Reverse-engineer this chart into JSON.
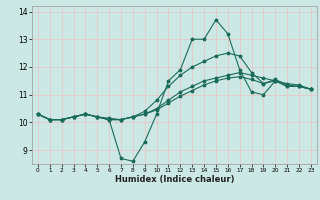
{
  "title": "",
  "xlabel": "Humidex (Indice chaleur)",
  "bg_color": "#cce8e4",
  "grid_color": "#e8c8c8",
  "line_color": "#1a6b5a",
  "series": [
    [
      10.3,
      10.1,
      10.1,
      10.2,
      10.3,
      10.2,
      10.1,
      8.7,
      8.6,
      9.3,
      10.3,
      11.5,
      11.9,
      13.0,
      13.0,
      13.7,
      13.2,
      11.9,
      11.1,
      11.0,
      11.5,
      11.3,
      11.3,
      11.2
    ],
    [
      10.3,
      10.1,
      10.1,
      10.2,
      10.3,
      10.2,
      10.1,
      10.1,
      10.2,
      10.3,
      10.5,
      10.8,
      11.1,
      11.3,
      11.5,
      11.6,
      11.7,
      11.8,
      11.7,
      11.6,
      11.5,
      11.4,
      11.35,
      11.2
    ],
    [
      10.3,
      10.1,
      10.1,
      10.2,
      10.3,
      10.2,
      10.15,
      10.1,
      10.2,
      10.3,
      10.45,
      10.7,
      10.95,
      11.15,
      11.35,
      11.5,
      11.6,
      11.65,
      11.55,
      11.4,
      11.55,
      11.35,
      11.3,
      11.2
    ],
    [
      10.3,
      10.1,
      10.1,
      10.2,
      10.3,
      10.2,
      10.1,
      10.1,
      10.2,
      10.4,
      10.8,
      11.3,
      11.7,
      12.0,
      12.2,
      12.4,
      12.5,
      12.4,
      11.8,
      11.4,
      11.5,
      11.3,
      11.3,
      11.2
    ]
  ],
  "ylim": [
    8.5,
    14.2
  ],
  "yticks": [
    9,
    10,
    11,
    12,
    13,
    14
  ],
  "xticks": [
    0,
    1,
    2,
    3,
    4,
    5,
    6,
    7,
    8,
    9,
    10,
    11,
    12,
    13,
    14,
    15,
    16,
    17,
    18,
    19,
    20,
    21,
    22,
    23
  ]
}
